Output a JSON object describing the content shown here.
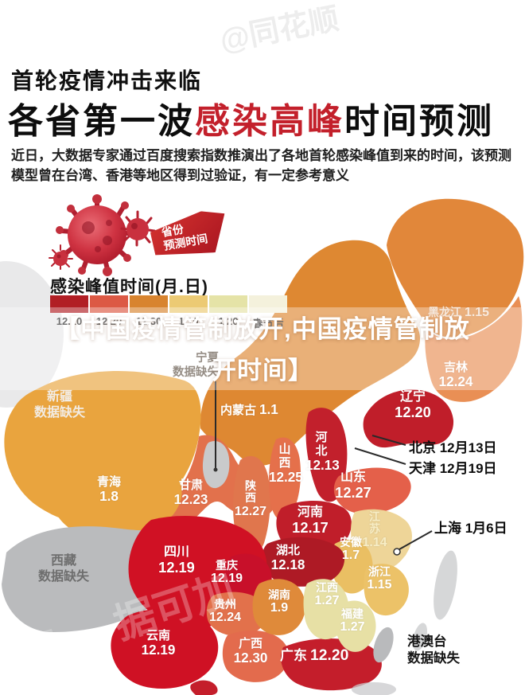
{
  "watermarks": {
    "top": "@同花顺",
    "map_main": "据可加",
    "map_corner": "花顺"
  },
  "header": {
    "kicker": "首轮疫情冲击来临",
    "title_pre": "各省第一波",
    "title_highlight": "感染高峰",
    "title_post": "时间预测",
    "subtitle": "近日，大数据专家通过百度搜索指数推演出了各地首轮感染峰值到来的时间，该预测模型曾在台湾、香港等地区得到过验证，有一定参考意义"
  },
  "badge": {
    "line1": "省份",
    "line2": "预测时间"
  },
  "legend": {
    "title": "感染峰值时间(月.日)",
    "stops": [
      {
        "label": "12.10",
        "color": "#b11e24"
      },
      {
        "label": "12.20",
        "color": "#dc5944"
      },
      {
        "label": "12.30",
        "color": "#d8842f"
      },
      {
        "label": "1.10",
        "color": "#ecca74"
      },
      {
        "label": "1.20",
        "color": "#e5e3a7"
      },
      {
        "label": "春节后",
        "color": "#f4f1dc"
      }
    ]
  },
  "overlay": {
    "line1": "【中国疫情管制放开,中国疫情管制放",
    "line2": "开时间】"
  },
  "map": {
    "provinces": [
      {
        "name": "黑龙江",
        "value": "1.15",
        "fill": "#e1873a"
      },
      {
        "name": "吉林",
        "value": "12.24",
        "fill": "#e98f55"
      },
      {
        "name": "辽宁",
        "value": "12.20",
        "fill": "#c01e2a"
      },
      {
        "name": "内蒙古",
        "value": "1.1",
        "fill": "#de8832"
      },
      {
        "name": "河北",
        "value": "12.13",
        "fill": "#c2202c"
      },
      {
        "name": "山西",
        "value": "12.25",
        "fill": "#e5704b"
      },
      {
        "name": "山东",
        "value": "12.27",
        "fill": "#e4604a"
      },
      {
        "name": "河南",
        "value": "12.17",
        "fill": "#c01e2a"
      },
      {
        "name": "陕西",
        "value": "12.27",
        "fill": "#e0764d"
      },
      {
        "name": "甘肃",
        "value": "12.23",
        "fill": "#e2714c"
      },
      {
        "name": "青海",
        "value": "1.8",
        "fill": "#e9a43e"
      },
      {
        "name": "江苏",
        "value": "1.14",
        "fill": "#eed598"
      },
      {
        "name": "安徽",
        "value": "1.7",
        "fill": "#eabf63"
      },
      {
        "name": "湖北",
        "value": "12.18",
        "fill": "#ae1a25"
      },
      {
        "name": "四川",
        "value": "12.19",
        "fill": "#d01124"
      },
      {
        "name": "重庆",
        "value": "12.19",
        "fill": "#c8102a"
      },
      {
        "name": "贵州",
        "value": "12.24",
        "fill": "#e2714b"
      },
      {
        "name": "云南",
        "value": "12.19",
        "fill": "#cf1124"
      },
      {
        "name": "广西",
        "value": "12.30",
        "fill": "#e36b4d"
      },
      {
        "name": "广东",
        "value": "12.20",
        "fill": "#c41e2b"
      },
      {
        "name": "湖南",
        "value": "1.9",
        "fill": "#df8a3a"
      },
      {
        "name": "江西",
        "value": "1.27",
        "fill": "#e7e0a5"
      },
      {
        "name": "福建",
        "value": "1.27",
        "fill": "#e7e0a5"
      },
      {
        "name": "浙江",
        "value": "1.15",
        "fill": "#ecc268"
      }
    ],
    "missing": [
      {
        "name": "新疆",
        "note": "数据缺失",
        "fill": "#e9a43e"
      },
      {
        "name": "宁夏",
        "note": "数据缺失",
        "fill": "#c9cacb"
      },
      {
        "name": "西藏",
        "note": "数据缺失",
        "fill": "#babbbd"
      },
      {
        "name": "港澳台",
        "note": "数据缺失",
        "fill": "#b9babc"
      }
    ],
    "callouts": [
      {
        "city": "北京",
        "date": "12月13日"
      },
      {
        "city": "天津",
        "date": "12月19日"
      },
      {
        "city": "上海",
        "date": "1月6日"
      }
    ]
  }
}
